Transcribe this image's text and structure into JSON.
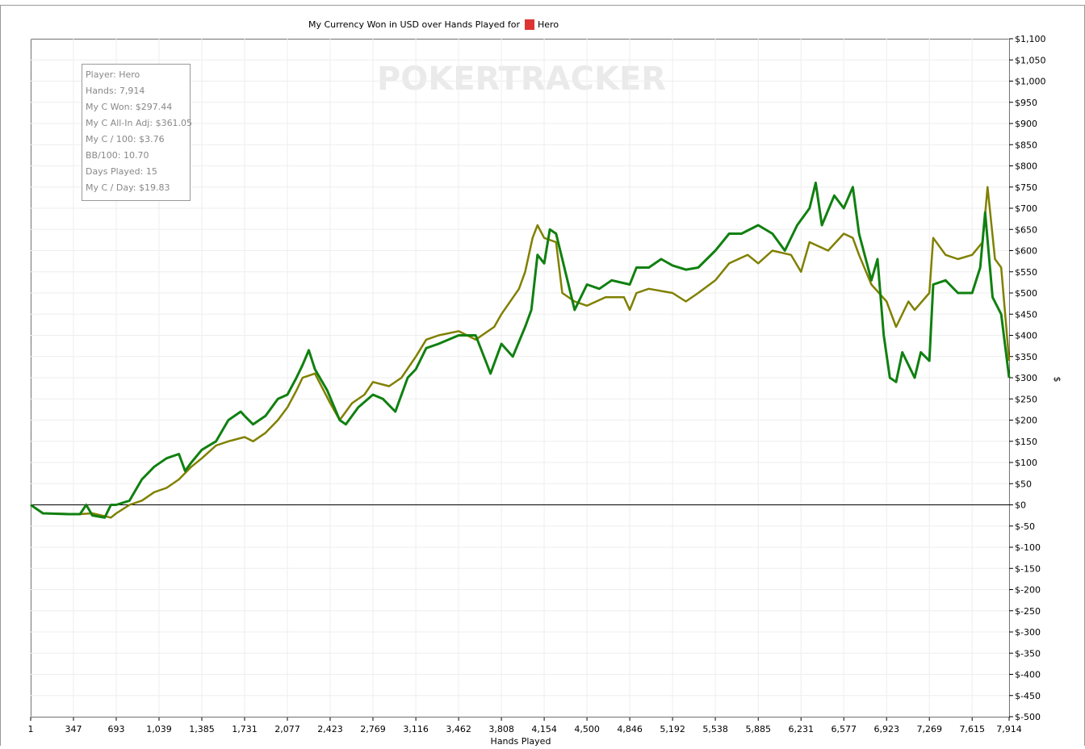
{
  "chart_data": {
    "type": "line",
    "title": "My Currency Won in USD over Hands Played for",
    "title_player": "Hero",
    "watermark": "POKERTRACKER",
    "x_label": "Hands Played",
    "y_label": "$",
    "stats_box": [
      "Player: Hero",
      "Hands: 7,914",
      "My C Won: $297.44",
      "My C All-In Adj: $361.05",
      "My C / 100: $3.76",
      "BB/100: 10.70",
      "Days Played: 15",
      "My C / Day: $19.83"
    ],
    "grid": true,
    "xlim": [
      1,
      7914
    ],
    "ylim": [
      -500,
      1100
    ],
    "xticks": [
      1,
      347,
      693,
      {
        "value": 1039,
        "label": "1,039"
      },
      {
        "value": 1385,
        "label": "1,385"
      },
      {
        "value": 1731,
        "label": "1,731"
      },
      {
        "value": 2077,
        "label": "2,077"
      },
      {
        "value": 2423,
        "label": "2,423"
      },
      {
        "value": 2769,
        "label": "2,769"
      },
      {
        "value": 3116,
        "label": "3,116"
      },
      {
        "value": 3462,
        "label": "3,462"
      },
      {
        "value": 3808,
        "label": "3,808"
      },
      {
        "value": 4154,
        "label": "4,154"
      },
      {
        "value": 4500,
        "label": "4,500"
      },
      {
        "value": 4846,
        "label": "4,846"
      },
      {
        "value": 5192,
        "label": "5,192"
      },
      {
        "value": 5538,
        "label": "5,538"
      },
      {
        "value": 5885,
        "label": "5,885"
      },
      {
        "value": 6231,
        "label": "6,231"
      },
      {
        "value": 6577,
        "label": "6,577"
      },
      {
        "value": 6923,
        "label": "6,923"
      },
      {
        "value": 7269,
        "label": "7,269"
      },
      {
        "value": 7615,
        "label": "7,615"
      },
      {
        "value": 7914,
        "label": "7,914"
      }
    ],
    "yticks": [
      {
        "value": 1100,
        "label": "$1,100"
      },
      {
        "value": 1050,
        "label": "$1,050"
      },
      {
        "value": 1000,
        "label": "$1,000"
      },
      {
        "value": 950,
        "label": "$950"
      },
      {
        "value": 900,
        "label": "$900"
      },
      {
        "value": 850,
        "label": "$850"
      },
      {
        "value": 800,
        "label": "$800"
      },
      {
        "value": 750,
        "label": "$750"
      },
      {
        "value": 700,
        "label": "$700"
      },
      {
        "value": 650,
        "label": "$650"
      },
      {
        "value": 600,
        "label": "$600"
      },
      {
        "value": 550,
        "label": "$550"
      },
      {
        "value": 500,
        "label": "$500"
      },
      {
        "value": 450,
        "label": "$450"
      },
      {
        "value": 400,
        "label": "$400"
      },
      {
        "value": 350,
        "label": "$350"
      },
      {
        "value": 300,
        "label": "$300"
      },
      {
        "value": 250,
        "label": "$250"
      },
      {
        "value": 200,
        "label": "$200"
      },
      {
        "value": 150,
        "label": "$150"
      },
      {
        "value": 100,
        "label": "$100"
      },
      {
        "value": 50,
        "label": "$50"
      },
      {
        "value": 0,
        "label": "$0"
      },
      {
        "value": -50,
        "label": "$-50"
      },
      {
        "value": -100,
        "label": "$-100"
      },
      {
        "value": -150,
        "label": "$-150"
      },
      {
        "value": -200,
        "label": "$-200"
      },
      {
        "value": -250,
        "label": "$-250"
      },
      {
        "value": -300,
        "label": "$-300"
      },
      {
        "value": -350,
        "label": "$-350"
      },
      {
        "value": -400,
        "label": "$-400"
      },
      {
        "value": -450,
        "label": "$-450"
      },
      {
        "value": -500,
        "label": "$-500"
      }
    ],
    "series": [
      {
        "color": "#808000",
        "x": [
          1,
          100,
          400,
          500,
          650,
          693,
          800,
          900,
          1000,
          1100,
          1200,
          1300,
          1385,
          1500,
          1600,
          1731,
          1800,
          1900,
          2000,
          2077,
          2150,
          2200,
          2300,
          2423,
          2500,
          2600,
          2700,
          2769,
          2900,
          3000,
          3116,
          3200,
          3300,
          3462,
          3600,
          3750,
          3808,
          3950,
          4000,
          4060,
          4100,
          4154,
          4250,
          4300,
          4400,
          4500,
          4650,
          4800,
          4846,
          4900,
          5000,
          5192,
          5300,
          5400,
          5538,
          5650,
          5800,
          5885,
          6000,
          6150,
          6231,
          6300,
          6450,
          6577,
          6650,
          6700,
          6800,
          6923,
          7000,
          7100,
          7150,
          7269,
          7300,
          7400,
          7500,
          7615,
          7700,
          7740,
          7800,
          7850,
          7914
        ],
        "values": [
          0,
          -20,
          -22,
          -20,
          -30,
          -20,
          0,
          10,
          30,
          40,
          60,
          90,
          110,
          140,
          150,
          160,
          150,
          170,
          200,
          230,
          270,
          300,
          310,
          240,
          200,
          240,
          260,
          290,
          280,
          300,
          350,
          390,
          400,
          410,
          390,
          420,
          450,
          510,
          550,
          630,
          660,
          630,
          620,
          500,
          480,
          470,
          490,
          490,
          460,
          500,
          510,
          500,
          480,
          500,
          530,
          570,
          590,
          570,
          600,
          590,
          550,
          620,
          600,
          640,
          630,
          590,
          520,
          480,
          420,
          480,
          460,
          500,
          630,
          590,
          580,
          590,
          620,
          750,
          580,
          560,
          340
        ]
      },
      {
        "color": "#108010",
        "x": [
          1,
          100,
          300,
          400,
          450,
          500,
          600,
          650,
          693,
          800,
          900,
          1000,
          1100,
          1200,
          1250,
          1300,
          1385,
          1500,
          1600,
          1700,
          1731,
          1800,
          1900,
          2000,
          2077,
          2150,
          2200,
          2250,
          2300,
          2400,
          2500,
          2550,
          2650,
          2769,
          2850,
          2950,
          3050,
          3116,
          3200,
          3300,
          3462,
          3600,
          3680,
          3720,
          3808,
          3900,
          4000,
          4050,
          4100,
          4154,
          4200,
          4250,
          4300,
          4400,
          4500,
          4600,
          4700,
          4846,
          4900,
          5000,
          5100,
          5192,
          5300,
          5400,
          5538,
          5650,
          5750,
          5885,
          6000,
          6100,
          6200,
          6300,
          6350,
          6400,
          6500,
          6577,
          6650,
          6700,
          6800,
          6850,
          6900,
          6950,
          7000,
          7050,
          7150,
          7200,
          7269,
          7300,
          7400,
          7500,
          7615,
          7680,
          7720,
          7780,
          7850,
          7914
        ],
        "values": [
          0,
          -20,
          -22,
          -22,
          0,
          -25,
          -30,
          0,
          0,
          10,
          60,
          90,
          110,
          120,
          80,
          100,
          130,
          150,
          200,
          220,
          210,
          190,
          210,
          250,
          260,
          300,
          330,
          365,
          320,
          270,
          200,
          190,
          230,
          260,
          250,
          220,
          300,
          320,
          370,
          380,
          400,
          400,
          340,
          310,
          380,
          350,
          420,
          460,
          590,
          570,
          650,
          640,
          580,
          460,
          520,
          510,
          530,
          520,
          560,
          560,
          580,
          565,
          555,
          560,
          600,
          640,
          640,
          660,
          640,
          600,
          660,
          700,
          760,
          660,
          730,
          700,
          750,
          640,
          530,
          580,
          400,
          300,
          290,
          360,
          300,
          360,
          340,
          520,
          530,
          500,
          500,
          560,
          690,
          490,
          450,
          300
        ]
      }
    ]
  }
}
